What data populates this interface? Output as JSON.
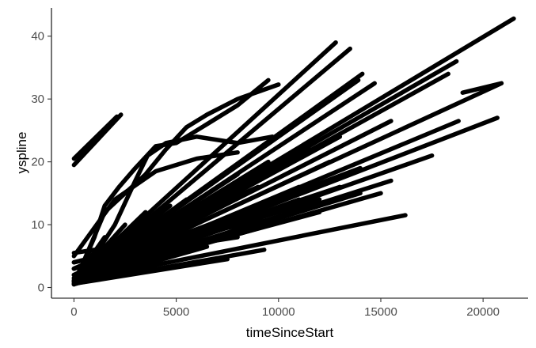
{
  "chart_data": {
    "type": "line",
    "title": "",
    "xlabel": "timeSinceStart",
    "ylabel": "yspline",
    "xlim": [
      -1100,
      22200
    ],
    "ylim": [
      -1.7,
      44.5
    ],
    "x_ticks": [
      0,
      5000,
      10000,
      15000,
      20000
    ],
    "x_tick_labels": [
      "0",
      "5000",
      "10000",
      "15000",
      "20000"
    ],
    "y_ticks": [
      0,
      10,
      20,
      30,
      40
    ],
    "y_tick_labels": [
      "0",
      "10",
      "20",
      "30",
      "40"
    ],
    "grid": false,
    "legend": "none",
    "line_color": "#000000",
    "series": [
      {
        "x": [
          0,
          21500
        ],
        "y": [
          0.8,
          42.8
        ]
      },
      {
        "x": [
          0,
          12800
        ],
        "y": [
          1.0,
          39.0
        ]
      },
      {
        "x": [
          0,
          13500
        ],
        "y": [
          1.0,
          38.0
        ]
      },
      {
        "x": [
          0,
          14100
        ],
        "y": [
          1.0,
          34.0
        ]
      },
      {
        "x": [
          0,
          13900
        ],
        "y": [
          1.0,
          33.0
        ]
      },
      {
        "x": [
          0,
          14700
        ],
        "y": [
          1.0,
          32.5
        ]
      },
      {
        "x": [
          0,
          18700
        ],
        "y": [
          1.0,
          36.0
        ]
      },
      {
        "x": [
          0,
          18300
        ],
        "y": [
          1.0,
          34.0
        ]
      },
      {
        "x": [
          0,
          20900,
          19000
        ],
        "y": [
          1.2,
          32.5,
          31.0
        ]
      },
      {
        "x": [
          0,
          20700
        ],
        "y": [
          1.0,
          27.0
        ]
      },
      {
        "x": [
          0,
          18800
        ],
        "y": [
          1.0,
          26.5
        ]
      },
      {
        "x": [
          0,
          15500
        ],
        "y": [
          1.0,
          26.5
        ]
      },
      {
        "x": [
          0,
          17500
        ],
        "y": [
          1.0,
          21.0
        ]
      },
      {
        "x": [
          0,
          15500
        ],
        "y": [
          1.0,
          17.0
        ]
      },
      {
        "x": [
          0,
          15000
        ],
        "y": [
          1.0,
          15.0
        ]
      },
      {
        "x": [
          0,
          16200
        ],
        "y": [
          1.0,
          11.5
        ]
      },
      {
        "x": [
          0,
          11000
        ],
        "y": [
          1.0,
          14.0
        ]
      },
      {
        "x": [
          0,
          9000
        ],
        "y": [
          1.0,
          13.0
        ]
      },
      {
        "x": [
          0,
          9300
        ],
        "y": [
          0.6,
          6.0
        ]
      },
      {
        "x": [
          0,
          7500
        ],
        "y": [
          0.6,
          4.5
        ]
      },
      {
        "x": [
          0,
          6500
        ],
        "y": [
          0.5,
          6.5
        ]
      },
      {
        "x": [
          0,
          7000
        ],
        "y": [
          1.0,
          10.0
        ]
      },
      {
        "x": [
          0,
          11000
        ],
        "y": [
          1.0,
          16.0
        ]
      },
      {
        "x": [
          0,
          12500
        ],
        "y": [
          1.0,
          20.0
        ]
      },
      {
        "x": [
          0,
          13000
        ],
        "y": [
          1.0,
          24.0
        ]
      },
      {
        "x": [
          0,
          11500
        ],
        "y": [
          1.0,
          22.0
        ]
      },
      {
        "x": [
          0,
          10500
        ],
        "y": [
          1.0,
          21.0
        ]
      },
      {
        "x": [
          0,
          9500
        ],
        "y": [
          1.0,
          20.0
        ]
      },
      {
        "x": [
          0,
          8000
        ],
        "y": [
          1.0,
          18.0
        ]
      },
      {
        "x": [
          0,
          6500
        ],
        "y": [
          1.0,
          16.0
        ]
      },
      {
        "x": [
          0,
          5500
        ],
        "y": [
          1.0,
          14.0
        ]
      },
      {
        "x": [
          0,
          4700
        ],
        "y": [
          1.0,
          13.0
        ]
      },
      {
        "x": [
          0,
          3500
        ],
        "y": [
          1.0,
          12.0
        ]
      },
      {
        "x": [
          0,
          2500
        ],
        "y": [
          1.0,
          10.0
        ]
      },
      {
        "x": [
          0,
          1500
        ],
        "y": [
          1.0,
          8.0
        ]
      },
      {
        "x": [
          0,
          800
        ],
        "y": [
          1.0,
          6.0
        ]
      },
      {
        "x": [
          0,
          9000
        ],
        "y": [
          3.0,
          16.0
        ]
      },
      {
        "x": [
          0,
          7500
        ],
        "y": [
          2.0,
          14.0
        ]
      },
      {
        "x": [
          0,
          13000
        ],
        "y": [
          2.0,
          16.0
        ]
      },
      {
        "x": [
          0,
          14000
        ],
        "y": [
          2.0,
          19.0
        ]
      },
      {
        "x": [
          0,
          12000
        ],
        "y": [
          1.5,
          12.0
        ]
      },
      {
        "x": [
          0,
          10000
        ],
        "y": [
          1.5,
          11.0
        ]
      },
      {
        "x": [
          0,
          3000,
          7000,
          12000
        ],
        "y": [
          3.0,
          6.0,
          9.0,
          14.0
        ]
      },
      {
        "x": [
          0,
          5000,
          10000,
          14000
        ],
        "y": [
          4.0,
          8.0,
          11.0,
          15.0
        ]
      },
      {
        "x": [
          0,
          4000,
          8000
        ],
        "y": [
          2.0,
          6.0,
          8.0
        ]
      },
      {
        "x": [
          0,
          2000,
          4000
        ],
        "y": [
          4.0,
          5.5,
          7.0
        ]
      },
      {
        "x": [
          0,
          1500
        ],
        "y": [
          3.0,
          5.0
        ]
      },
      {
        "x": [
          0,
          3000
        ],
        "y": [
          5.5,
          7.0
        ]
      },
      {
        "x": [
          0,
          800,
          2000,
          3000,
          3600,
          4500,
          6000,
          8000,
          9700
        ],
        "y": [
          0.5,
          4.0,
          10.0,
          17.0,
          21.0,
          23.0,
          24.0,
          23.0,
          24.0
        ]
      },
      {
        "x": [
          0,
          1000,
          1500,
          2200,
          3000,
          4000,
          5000,
          6500,
          8000,
          9500
        ],
        "y": [
          0.5,
          8.0,
          13.0,
          16.0,
          19.0,
          22.5,
          23.0,
          26.0,
          29.0,
          33.0
        ]
      },
      {
        "x": [
          0,
          1500,
          2500,
          3500,
          4500,
          5500,
          6500,
          8000,
          10000
        ],
        "y": [
          0.5,
          12.0,
          15.0,
          18.0,
          22.0,
          25.5,
          27.5,
          30.0,
          32.3
        ]
      },
      {
        "x": [
          0,
          2000,
          4000,
          6000,
          8000
        ],
        "y": [
          5.0,
          14.0,
          18.5,
          20.5,
          21.5
        ]
      },
      {
        "x": [
          0,
          2300
        ],
        "y": [
          19.5,
          27.5
        ]
      },
      {
        "x": [
          0,
          2100
        ],
        "y": [
          20.5,
          27.2
        ]
      }
    ]
  }
}
